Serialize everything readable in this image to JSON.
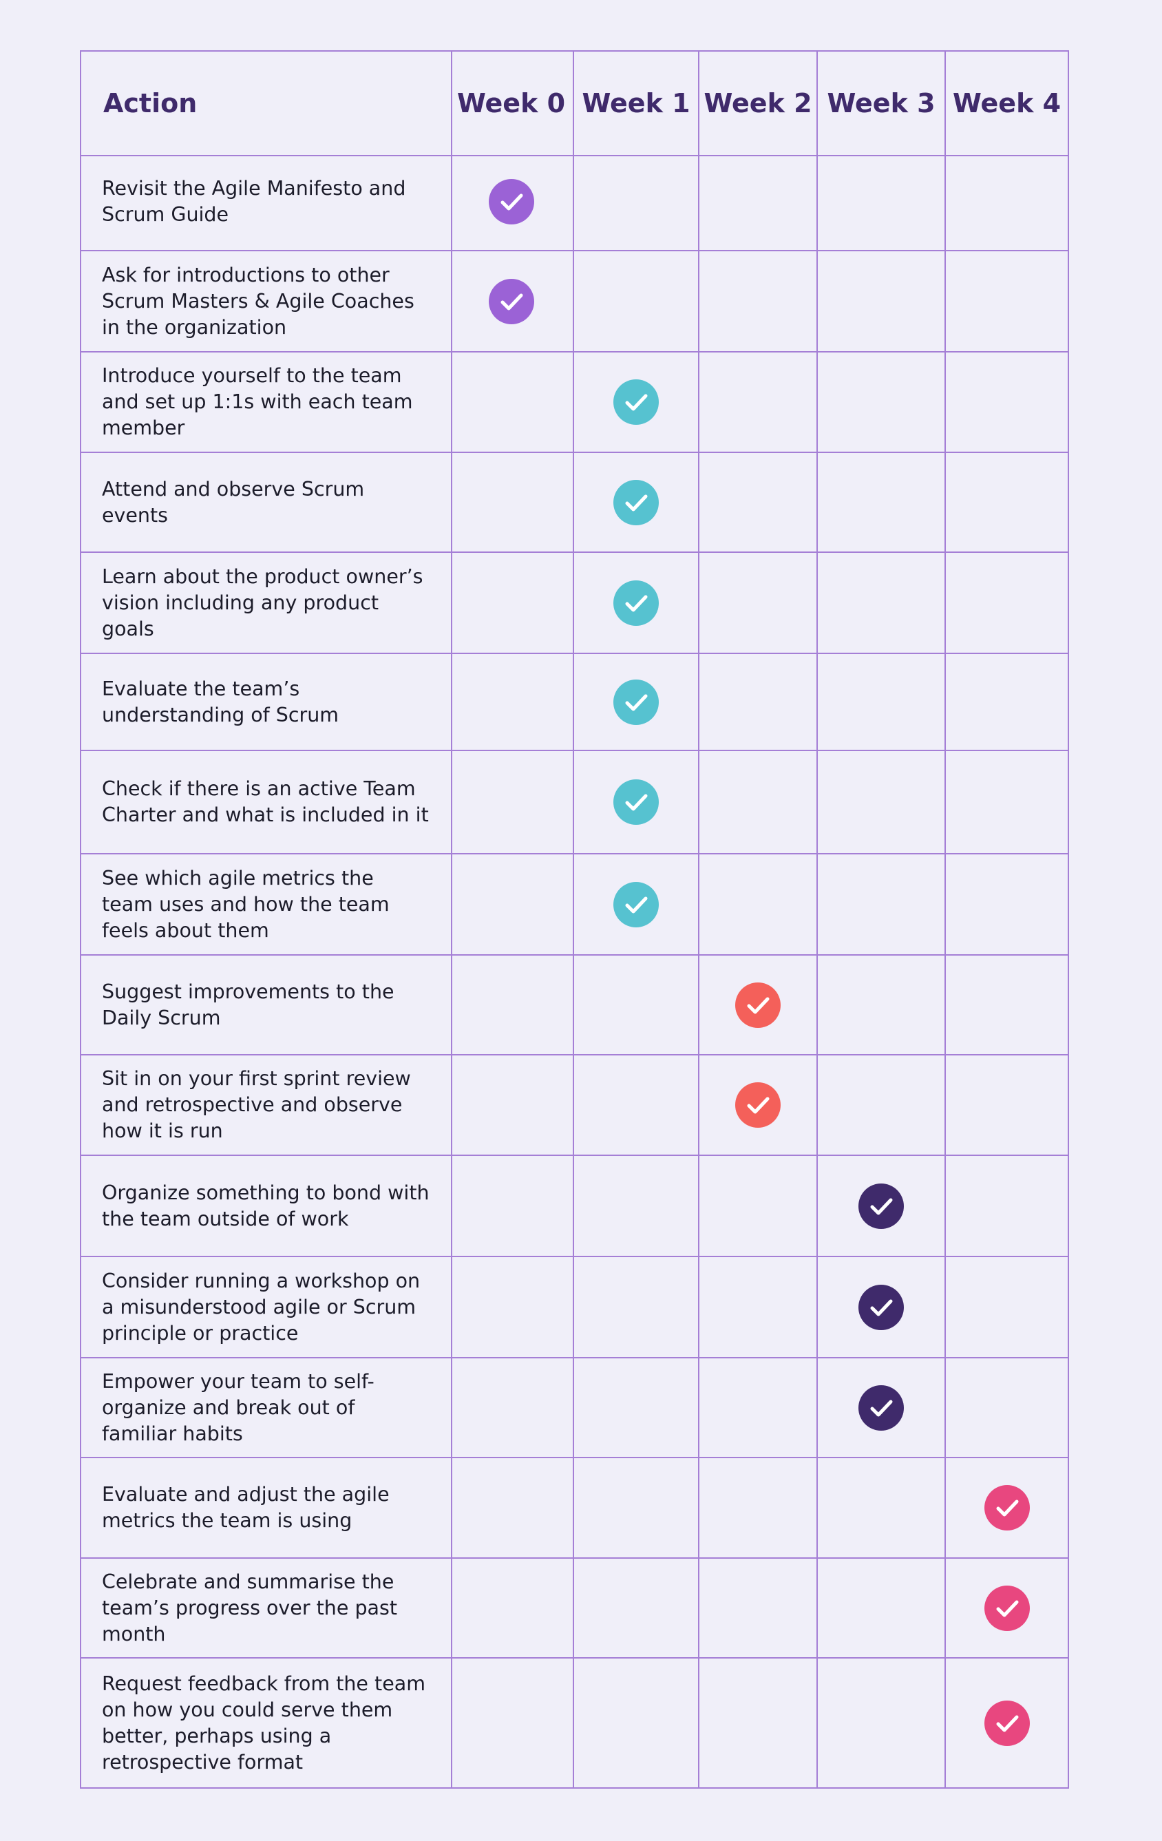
{
  "table": {
    "header": [
      "Action",
      "Week 0",
      "Week 1",
      "Week 2",
      "Week 3",
      "Week 4"
    ],
    "week_colors": [
      "#9b62d6",
      "#56c2d0",
      "#f4605a",
      "#3f2a6b",
      "#e8477f"
    ],
    "rows": [
      {
        "text": "Revisit the Agile Manifesto and Scrum Guide",
        "checks": [
          true,
          false,
          false,
          false,
          false
        ]
      },
      {
        "text": "Ask for introductions to other Scrum Masters & Agile Coaches in the organization",
        "checks": [
          true,
          false,
          false,
          false,
          false
        ]
      },
      {
        "text": "Introduce yourself to the team and set up 1:1s with each team member",
        "checks": [
          false,
          true,
          false,
          false,
          false
        ]
      },
      {
        "text": "Attend and observe Scrum events",
        "checks": [
          false,
          true,
          false,
          false,
          false
        ]
      },
      {
        "text": "Learn about the product owner’s vision including any product goals",
        "checks": [
          false,
          true,
          false,
          false,
          false
        ]
      },
      {
        "text": "Evaluate the team’s understanding of Scrum",
        "checks": [
          false,
          true,
          false,
          false,
          false
        ]
      },
      {
        "text": "Check if there is an active Team Charter and what is included in it",
        "checks": [
          false,
          true,
          false,
          false,
          false
        ]
      },
      {
        "text": "See which agile metrics the team uses and how the team feels about them",
        "checks": [
          false,
          true,
          false,
          false,
          false
        ]
      },
      {
        "text": "Suggest improvements to the Daily Scrum",
        "checks": [
          false,
          false,
          true,
          false,
          false
        ]
      },
      {
        "text": "Sit in on your first sprint review and retrospective and observe how it is run",
        "checks": [
          false,
          false,
          true,
          false,
          false
        ]
      },
      {
        "text": "Organize something to bond with the team outside of work",
        "checks": [
          false,
          false,
          false,
          true,
          false
        ]
      },
      {
        "text": "Consider running a workshop on a misunderstood agile or Scrum principle or practice",
        "checks": [
          false,
          false,
          false,
          true,
          false
        ]
      },
      {
        "text": "Empower your team to self-organize and break out of familiar habits",
        "checks": [
          false,
          false,
          false,
          true,
          false
        ]
      },
      {
        "text": "Evaluate and adjust the agile metrics the team is using",
        "checks": [
          false,
          false,
          false,
          false,
          true
        ]
      },
      {
        "text": "Celebrate and summarise the team’s progress over the past month",
        "checks": [
          false,
          false,
          false,
          false,
          true
        ]
      },
      {
        "text": "Request feedback from the team on how you could serve them better, perhaps using a retrospective format",
        "checks": [
          false,
          false,
          false,
          false,
          true
        ]
      }
    ]
  }
}
